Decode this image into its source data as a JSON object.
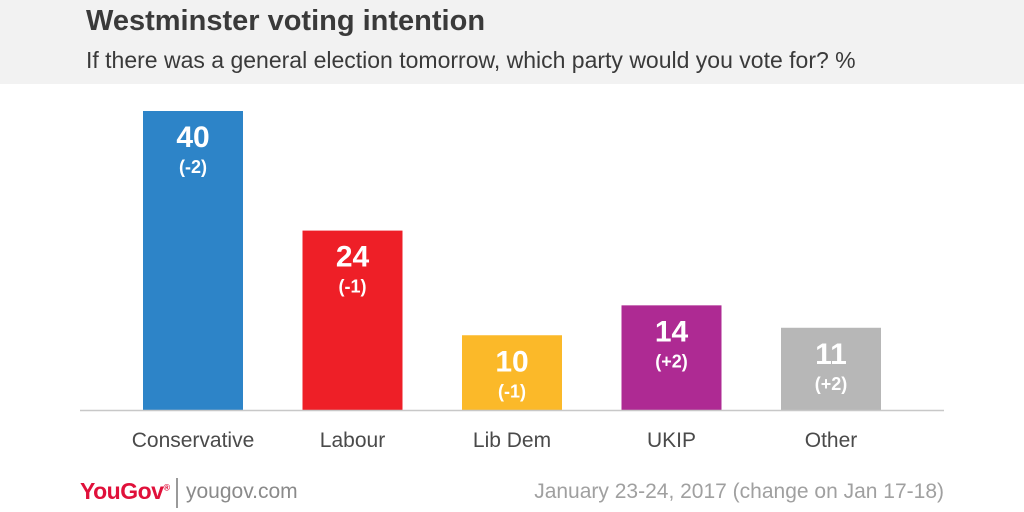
{
  "header": {
    "title": "Westminster voting intention",
    "subtitle": "If there was a general election tomorrow, which party would you vote for? %"
  },
  "chart_data": {
    "type": "bar",
    "categories": [
      "Conservative",
      "Labour",
      "Lib Dem",
      "UKIP",
      "Other"
    ],
    "values": [
      40,
      24,
      10,
      14,
      11
    ],
    "changes": [
      "(-2)",
      "(-1)",
      "(-1)",
      "(+2)",
      "(+2)"
    ],
    "colors": [
      "#2d84c8",
      "#ee1f27",
      "#fbb929",
      "#ae2a93",
      "#b7b7b7"
    ],
    "ylim": [
      0,
      40
    ],
    "grid": false
  },
  "footer": {
    "brand": "YouGov",
    "url": "yougov.com",
    "note": "January 23-24, 2017 (change on Jan 17-18)"
  },
  "colors": {
    "header_bg": "#f2f2f2",
    "brand": "#e0103a",
    "text": "#3a3a3a"
  }
}
